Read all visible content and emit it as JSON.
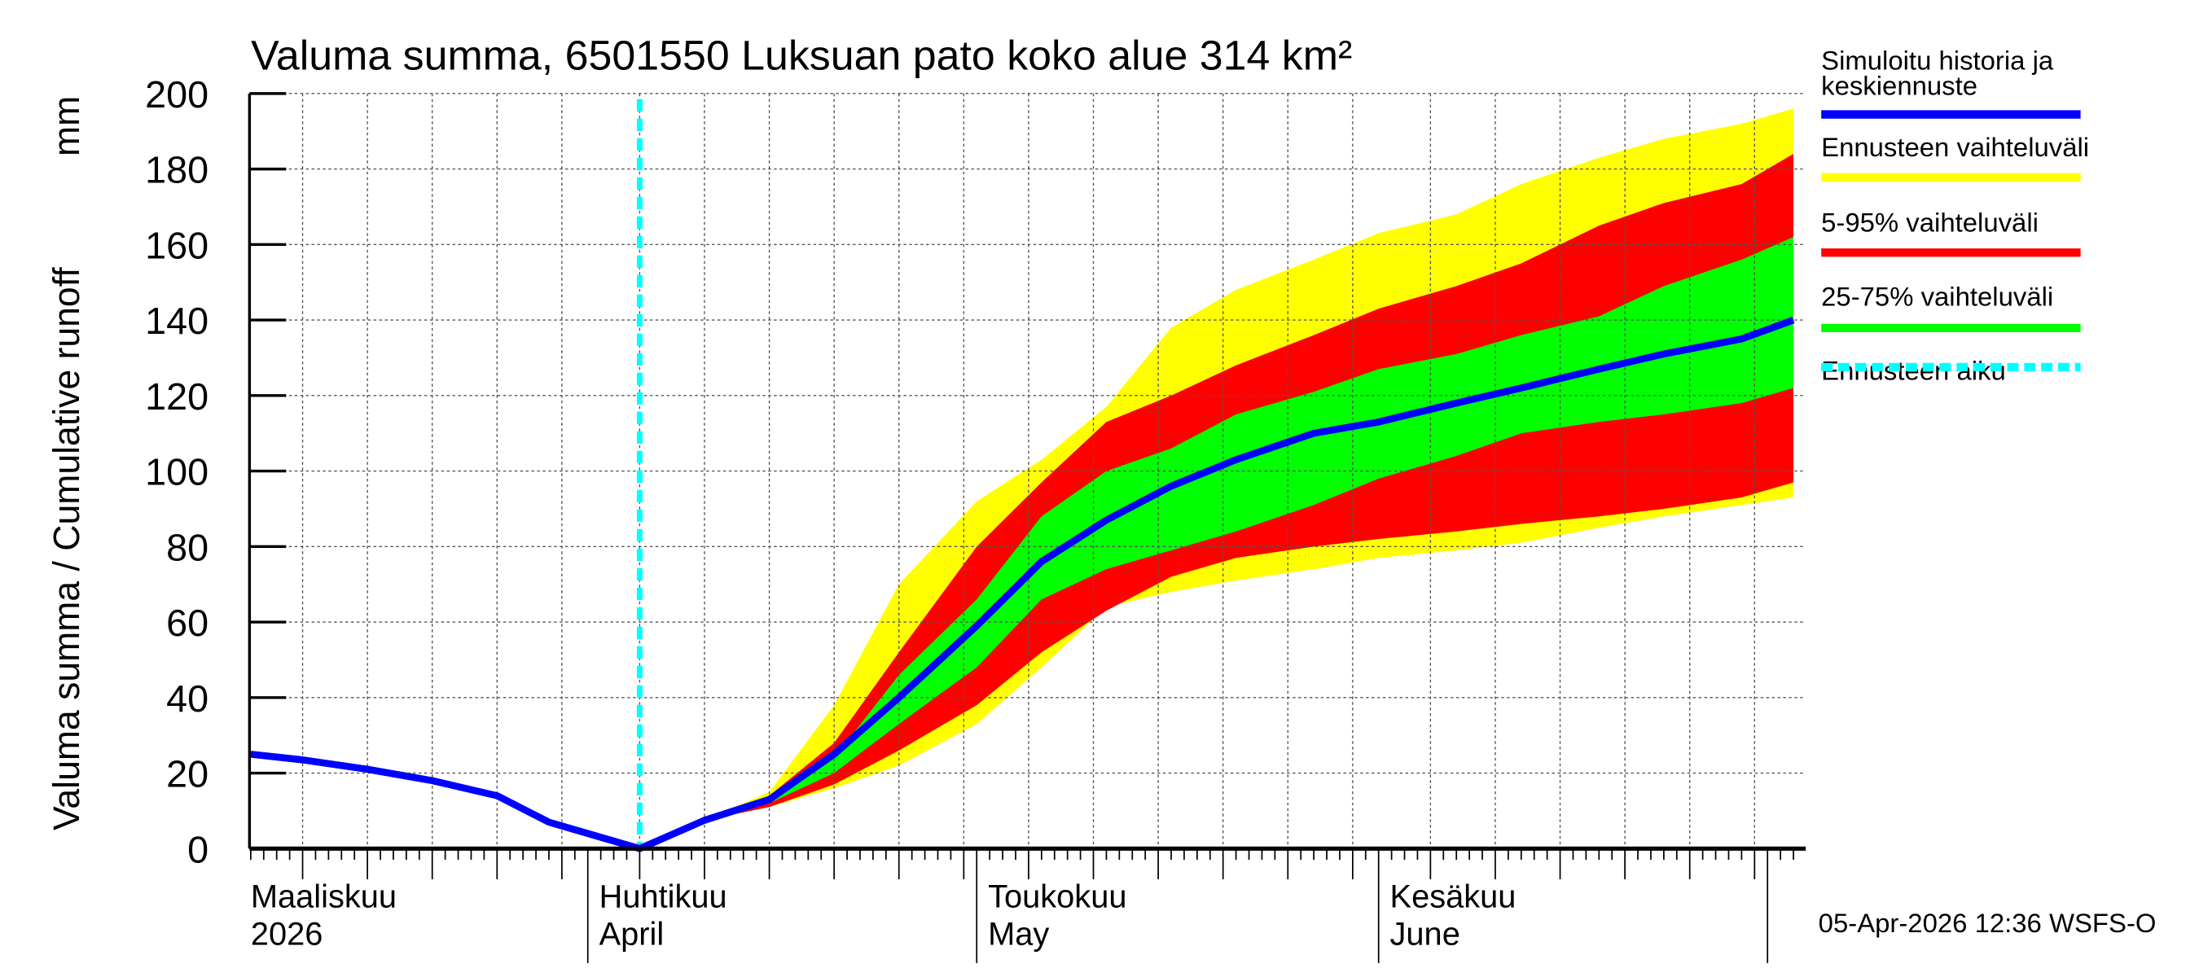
{
  "chart_data": {
    "type": "area",
    "title": "Valuma summa, 6501550 Luksuan pato koko alue 314 km²",
    "ylabel": "Valuma summa / Cumulative runoff",
    "yunit": "mm",
    "ylim": [
      0,
      200
    ],
    "yticks": [
      "0",
      "20",
      "40",
      "60",
      "80",
      "100",
      "120",
      "140",
      "160",
      "180",
      "200"
    ],
    "xlim": [
      "2026-03-06",
      "2026-07-03"
    ],
    "grid": true,
    "legend_position": "right",
    "month_labels": [
      {
        "date": "2026-03-06",
        "fi": "Maaliskuu",
        "en": "2026"
      },
      {
        "date": "2026-04-01",
        "fi": "Huhtikuu",
        "en": "April"
      },
      {
        "date": "2026-05-01",
        "fi": "Toukokuu",
        "en": "May"
      },
      {
        "date": "2026-06-01",
        "fi": "Kesäkuu",
        "en": "June"
      }
    ],
    "forecast_start": "2026-04-05",
    "colors": {
      "median": "#0000ff",
      "range": "#ffff00",
      "p5_95": "#ff0000",
      "p25_75": "#00ff00",
      "forecast_start": "#00ffff"
    },
    "legend": [
      {
        "label": "Simuloitu historia ja keskiennuste",
        "color": "#0000ff",
        "style": "solid"
      },
      {
        "label": "Ennusteen vaihteluväli",
        "color": "#ffff00",
        "style": "solid"
      },
      {
        "label": "5-95% vaihteluväli",
        "color": "#ff0000",
        "style": "solid"
      },
      {
        "label": "25-75% vaihteluväli",
        "color": "#00ff00",
        "style": "solid"
      },
      {
        "label": "Ennusteen alku",
        "color": "#00ffff",
        "style": "dashed"
      }
    ],
    "band_dates": [
      "2026-04-05",
      "2026-04-10",
      "2026-04-15",
      "2026-04-20",
      "2026-04-25",
      "2026-05-01",
      "2026-05-06",
      "2026-05-11",
      "2026-05-16",
      "2026-05-21",
      "2026-05-27",
      "2026-06-01",
      "2026-06-07",
      "2026-06-12",
      "2026-06-18",
      "2026-06-23",
      "2026-06-29",
      "2026-07-03"
    ],
    "range_low": [
      0,
      7.5,
      11,
      16,
      22,
      33,
      48,
      64,
      68,
      71,
      74,
      77,
      79,
      81,
      85,
      88,
      91,
      93
    ],
    "range_high": [
      0,
      7.5,
      15,
      38,
      70,
      92,
      103,
      117,
      138,
      148,
      156,
      163,
      168,
      176,
      183,
      188,
      192,
      196
    ],
    "p5_low": [
      0,
      7.5,
      11,
      17,
      26,
      38,
      52,
      63,
      72,
      77,
      80,
      82,
      84,
      86,
      88,
      90,
      93,
      97
    ],
    "p95_high": [
      0,
      7.5,
      14,
      28,
      52,
      80,
      97,
      113,
      120,
      128,
      136,
      143,
      149,
      155,
      165,
      171,
      176,
      184
    ],
    "p25_low": [
      0,
      7.5,
      12,
      20,
      33,
      48,
      66,
      74,
      79,
      84,
      91,
      98,
      104,
      110,
      113,
      115,
      118,
      122
    ],
    "p75_high": [
      0,
      7.5,
      13.5,
      24,
      46,
      66,
      88,
      100,
      106,
      115,
      121,
      127,
      131,
      136,
      141,
      149,
      156,
      162
    ],
    "median": {
      "dates": [
        "2026-03-06",
        "2026-03-10",
        "2026-03-15",
        "2026-03-20",
        "2026-03-25",
        "2026-03-29",
        "2026-04-05",
        "2026-04-10",
        "2026-04-15",
        "2026-04-20",
        "2026-04-25",
        "2026-05-01",
        "2026-05-06",
        "2026-05-11",
        "2026-05-16",
        "2026-05-21",
        "2026-05-27",
        "2026-06-01",
        "2026-06-07",
        "2026-06-12",
        "2026-06-18",
        "2026-06-23",
        "2026-06-29",
        "2026-07-03"
      ],
      "values": [
        25,
        23.5,
        21,
        18,
        14,
        7,
        0,
        7.5,
        13,
        25,
        40,
        59,
        76,
        87,
        96,
        103,
        110,
        113,
        118,
        122,
        127,
        131,
        135,
        140
      ]
    }
  },
  "timestamp": "05-Apr-2026 12:36 WSFS-O"
}
